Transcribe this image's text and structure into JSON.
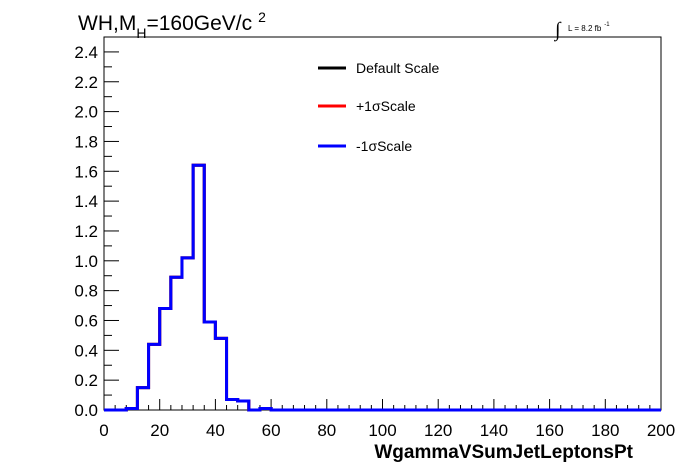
{
  "header": {
    "title_main": "WH,M",
    "title_sub": "H",
    "title_rest": "=160GeV/c",
    "title_sup": "2",
    "lumi_integral": "∫",
    "lumi_text": "L = 8.2 fb",
    "lumi_sup": "-1"
  },
  "chart_data": {
    "type": "line",
    "xlabel": "WgammaVSumJetLeptonsPt",
    "ylabel": "",
    "xlim": [
      0,
      200
    ],
    "ylim": [
      0,
      2.5
    ],
    "xticks": [
      "0",
      "20",
      "40",
      "60",
      "80",
      "100",
      "120",
      "140",
      "160",
      "180",
      "200"
    ],
    "yticks": [
      "0.0",
      "0.2",
      "0.4",
      "0.6",
      "0.8",
      "1.0",
      "1.2",
      "1.4",
      "1.6",
      "1.8",
      "2.0",
      "2.2",
      "2.4"
    ],
    "bin_edges": [
      0,
      4,
      8,
      12,
      16,
      20,
      24,
      28,
      32,
      36,
      40,
      44,
      48,
      52,
      56,
      60,
      200
    ],
    "series": [
      {
        "name": "Default Scale",
        "color": "#000000",
        "values": [
          0,
          0,
          0.01,
          0.15,
          0.44,
          0.68,
          0.89,
          1.02,
          1.64,
          0.59,
          0.48,
          0.07,
          0.06,
          0.0,
          0.01,
          0.0
        ]
      },
      {
        "name": "+1σScale",
        "color": "#ff0000",
        "values": [
          0,
          0,
          0.01,
          0.15,
          0.44,
          0.68,
          0.89,
          1.02,
          1.64,
          0.59,
          0.48,
          0.07,
          0.06,
          0.0,
          0.01,
          0.0
        ]
      },
      {
        "name": "-1σScale",
        "color": "#0000ff",
        "values": [
          0,
          0,
          0.01,
          0.15,
          0.44,
          0.68,
          0.89,
          1.02,
          1.64,
          0.59,
          0.48,
          0.07,
          0.06,
          0.0,
          0.01,
          0.0
        ]
      }
    ],
    "legend": "top-center"
  }
}
